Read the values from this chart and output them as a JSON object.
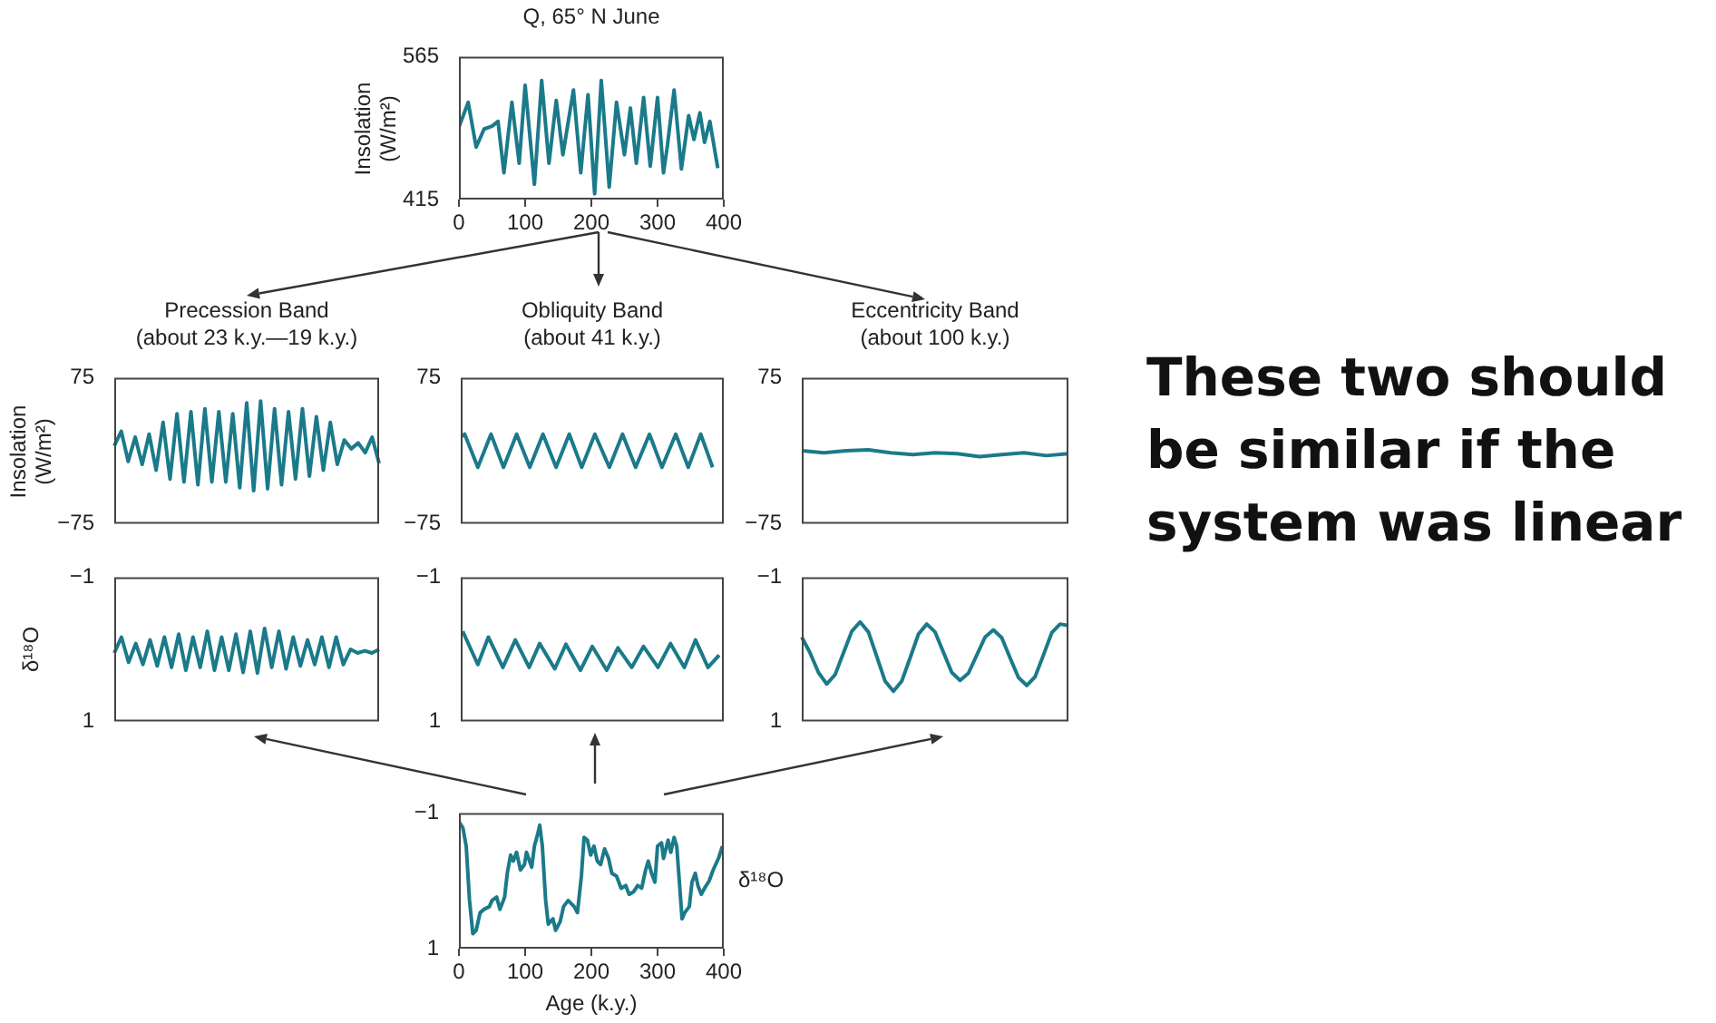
{
  "chart_data": [
    {
      "type": "line",
      "title": "Q, 65° N June",
      "ylabel": "Insolation (W/m²)",
      "xlim": [
        0,
        400
      ],
      "xticks": [
        0,
        100,
        200,
        300,
        400
      ],
      "ylim": [
        415,
        565
      ],
      "yticks": [
        415,
        565
      ],
      "x": [
        0,
        14,
        26,
        38,
        50,
        59,
        68,
        80,
        91,
        100,
        114,
        125,
        136,
        147,
        157,
        173,
        184,
        195,
        205,
        215,
        227,
        238,
        250,
        259,
        268,
        279,
        289,
        300,
        309,
        315,
        325,
        336,
        347,
        355,
        364,
        371,
        379,
        391
      ],
      "series": [
        {
          "color": "#1b7a8a",
          "values": [
            491,
            517,
            470,
            489,
            492,
            497,
            443,
            517,
            453,
            535,
            431,
            540,
            453,
            519,
            462,
            530,
            443,
            525,
            421,
            540,
            428,
            517,
            462,
            511,
            453,
            522,
            450,
            522,
            443,
            472,
            530,
            447,
            503,
            478,
            506,
            475,
            497,
            448
          ]
        }
      ]
    },
    {
      "type": "line",
      "title": "Precession Band",
      "subtitle": "(about 23 k.y.—19 k.y.)",
      "ylabel": "Insolation (W/m²)",
      "ylim": [
        -75,
        75
      ],
      "yticks": [
        75,
        -75
      ],
      "tick_labels": "y",
      "categories": [
        null,
        null,
        null,
        null,
        null,
        null,
        null,
        null,
        null,
        null,
        null,
        null,
        null,
        null,
        null,
        null,
        null,
        null,
        null,
        null,
        null,
        null,
        null,
        null,
        null,
        null,
        null,
        null,
        null,
        null,
        null,
        null,
        null,
        null,
        null,
        null,
        null,
        null,
        null
      ],
      "series": [
        {
          "color": "#1b7a8a",
          "values": [
            5,
            20,
            -11,
            14,
            -14,
            17,
            -20,
            29,
            -29,
            38,
            -32,
            40,
            -35,
            43,
            -32,
            40,
            -32,
            38,
            -38,
            49,
            -41,
            51,
            -39,
            43,
            -35,
            40,
            -29,
            43,
            -26,
            35,
            -20,
            29,
            -14,
            11,
            2,
            8,
            -2,
            14,
            -13
          ]
        }
      ]
    },
    {
      "type": "line",
      "title": "Obliquity Band",
      "subtitle": "(about 41 k.y.)",
      "xlim": [
        0,
        400
      ],
      "ylim": [
        -75,
        75
      ],
      "yticks": [
        75,
        -75
      ],
      "tick_labels": "y",
      "x": [
        0,
        6,
        26,
        46,
        65,
        85,
        105,
        125,
        145,
        165,
        184,
        204,
        226,
        246,
        266,
        287,
        306,
        327,
        346,
        365,
        383
      ],
      "series": [
        {
          "color": "#1b7a8a",
          "values": [
            14,
            17,
            -17,
            17,
            -17,
            17,
            -17,
            17,
            -17,
            17,
            -17,
            17,
            -17,
            17,
            -17,
            17,
            -17,
            17,
            -17,
            17,
            -17
          ]
        }
      ]
    },
    {
      "type": "line",
      "title": "Eccentricity Band",
      "subtitle": "(about 100 k.y.)",
      "ylim": [
        -75,
        75
      ],
      "yticks": [
        75,
        -75
      ],
      "tick_labels": "y",
      "categories": [
        null,
        null,
        null,
        null,
        null,
        null,
        null,
        null,
        null,
        null,
        null,
        null,
        null
      ],
      "series": [
        {
          "color": "#1b7a8a",
          "values": [
            0,
            -2,
            0,
            1,
            -2,
            -4,
            -2,
            -3,
            -6,
            -4,
            -2,
            -5,
            -3
          ]
        }
      ]
    },
    {
      "type": "line",
      "ylabel": "δ¹⁸O",
      "ylim": [
        1,
        -1
      ],
      "yticks": [
        -1,
        1
      ],
      "tick_labels": "y",
      "categories": [
        null,
        null,
        null,
        null,
        null,
        null,
        null,
        null,
        null,
        null,
        null,
        null,
        null,
        null,
        null,
        null,
        null,
        null,
        null,
        null,
        null,
        null,
        null,
        null,
        null,
        null,
        null,
        null,
        null,
        null,
        null,
        null,
        null,
        null,
        null,
        null,
        null,
        null
      ],
      "series": [
        {
          "color": "#1b7a8a",
          "values": [
            0.05,
            -0.17,
            0.18,
            -0.08,
            0.21,
            -0.13,
            0.23,
            -0.17,
            0.25,
            -0.21,
            0.29,
            -0.17,
            0.25,
            -0.25,
            0.29,
            -0.17,
            0.29,
            -0.21,
            0.32,
            -0.25,
            0.33,
            -0.29,
            0.25,
            -0.25,
            0.27,
            -0.17,
            0.23,
            -0.13,
            0.21,
            -0.17,
            0.25,
            -0.17,
            0.21,
            0,
            0.05,
            0.02,
            0.05,
            0
          ]
        }
      ]
    },
    {
      "type": "line",
      "xlim": [
        0,
        400
      ],
      "ylim": [
        1,
        -1
      ],
      "yticks": [
        -1,
        1
      ],
      "tick_labels": "y",
      "x": [
        3,
        26,
        42,
        64,
        83,
        104,
        120,
        143,
        160,
        182,
        200,
        222,
        239,
        260,
        278,
        300,
        319,
        340,
        357,
        376,
        393
      ],
      "series": [
        {
          "color": "#1b7a8a",
          "values": [
            -0.25,
            0.21,
            -0.17,
            0.25,
            -0.13,
            0.25,
            -0.08,
            0.27,
            -0.07,
            0.29,
            -0.04,
            0.29,
            -0.02,
            0.25,
            -0.04,
            0.25,
            -0.08,
            0.25,
            -0.13,
            0.25,
            0.08
          ]
        }
      ]
    },
    {
      "type": "line",
      "ylim": [
        1,
        -1
      ],
      "yticks": [
        -1,
        1
      ],
      "tick_labels": "y",
      "categories": [
        null,
        null,
        null,
        null,
        null,
        null,
        null,
        null,
        null,
        null,
        null,
        null,
        null,
        null,
        null,
        null,
        null,
        null,
        null,
        null,
        null,
        null,
        null,
        null,
        null,
        null,
        null,
        null,
        null,
        null,
        null,
        null,
        null
      ],
      "series": [
        {
          "color": "#1b7a8a",
          "values": [
            -0.17,
            0.05,
            0.32,
            0.48,
            0.35,
            0.05,
            -0.25,
            -0.38,
            -0.24,
            0.1,
            0.44,
            0.58,
            0.44,
            0.12,
            -0.21,
            -0.35,
            -0.24,
            0.04,
            0.32,
            0.43,
            0.33,
            0.08,
            -0.17,
            -0.27,
            -0.16,
            0.12,
            0.39,
            0.5,
            0.38,
            0.08,
            -0.23,
            -0.35,
            -0.33
          ]
        }
      ]
    },
    {
      "type": "line",
      "xlabel": "Age (k.y.)",
      "ylabel": "δ¹⁸O",
      "xlim": [
        0,
        400
      ],
      "xticks": [
        0,
        100,
        200,
        300,
        400
      ],
      "ylim": [
        1,
        -1
      ],
      "yticks": [
        -1,
        1
      ],
      "x": [
        0,
        6,
        11,
        16,
        21,
        26,
        32,
        38,
        46,
        50,
        57,
        62,
        69,
        73,
        78,
        82,
        87,
        93,
        99,
        102,
        110,
        114,
        119,
        122,
        126,
        131,
        135,
        142,
        146,
        153,
        158,
        165,
        174,
        179,
        185,
        189,
        194,
        199,
        204,
        209,
        214,
        220,
        226,
        231,
        238,
        245,
        252,
        257,
        264,
        270,
        276,
        282,
        286,
        291,
        296,
        300,
        306,
        309,
        316,
        320,
        325,
        329,
        333,
        337,
        341,
        348,
        352,
        357,
        361,
        366,
        371,
        378,
        384,
        392,
        398
      ],
      "series": [
        {
          "color": "#1b7a8a",
          "values": [
            -0.87,
            -0.78,
            -0.51,
            0.29,
            0.78,
            0.73,
            0.47,
            0.42,
            0.38,
            0.29,
            0.24,
            0.42,
            0.24,
            -0.11,
            -0.38,
            -0.29,
            -0.42,
            -0.16,
            -0.24,
            -0.42,
            -0.2,
            -0.51,
            -0.69,
            -0.82,
            -0.51,
            0.29,
            0.64,
            0.56,
            0.73,
            0.6,
            0.38,
            0.29,
            0.38,
            0.47,
            -0.07,
            -0.64,
            -0.6,
            -0.38,
            -0.51,
            -0.29,
            -0.24,
            -0.47,
            -0.33,
            -0.11,
            -0.07,
            0.11,
            0.07,
            0.2,
            0.16,
            0.07,
            0.11,
            -0.16,
            -0.29,
            -0.11,
            0.02,
            -0.51,
            -0.56,
            -0.33,
            -0.6,
            -0.42,
            -0.64,
            -0.51,
            0.02,
            0.56,
            0.47,
            0.38,
            0.02,
            -0.11,
            0.07,
            0.2,
            0.11,
            0,
            -0.16,
            -0.33,
            -0.51
          ]
        }
      ]
    },
    {
      "type": "other",
      "annotations": [
        "These two should be similar if the system was linear"
      ]
    }
  ]
}
